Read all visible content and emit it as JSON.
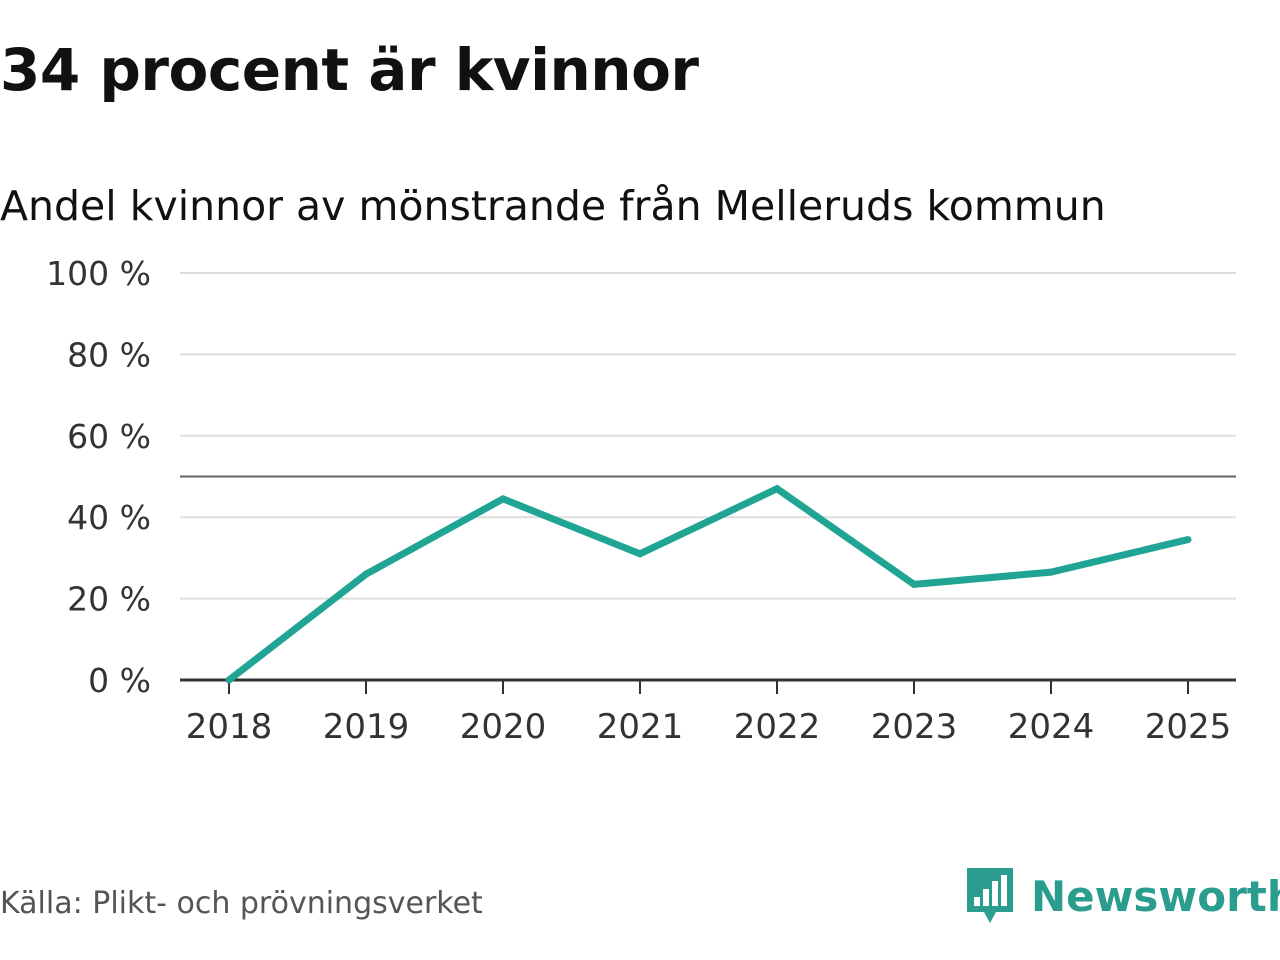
{
  "header": {
    "title": "34 procent är kvinnor",
    "subtitle": "Andel kvinnor av mönstrande från Melleruds kommun"
  },
  "footer": {
    "source": "Källa: Plikt- och prövningsverket",
    "brand": "Newsworthy"
  },
  "colors": {
    "line": "#20a595",
    "grid": "#dddddd",
    "reference": "#666666",
    "axis": "#333333",
    "brand": "#2a9d8f"
  },
  "chart_data": {
    "type": "line",
    "title": "34 procent är kvinnor",
    "subtitle": "Andel kvinnor av mönstrande från Melleruds kommun",
    "xlabel": "",
    "ylabel": "",
    "categories": [
      "2018",
      "2019",
      "2020",
      "2021",
      "2022",
      "2023",
      "2024",
      "2025"
    ],
    "series": [
      {
        "name": "Andel kvinnor",
        "values": [
          0,
          26,
          44.5,
          31,
          47,
          23.5,
          26.5,
          34.5
        ]
      }
    ],
    "ylim": [
      0,
      100
    ],
    "yticks": [
      0,
      20,
      40,
      60,
      80,
      100
    ],
    "ytick_labels": [
      "0 %",
      "20 %",
      "40 %",
      "60 %",
      "80 %",
      "100 %"
    ],
    "reference_line": 50,
    "grid": true,
    "legend": "none"
  }
}
